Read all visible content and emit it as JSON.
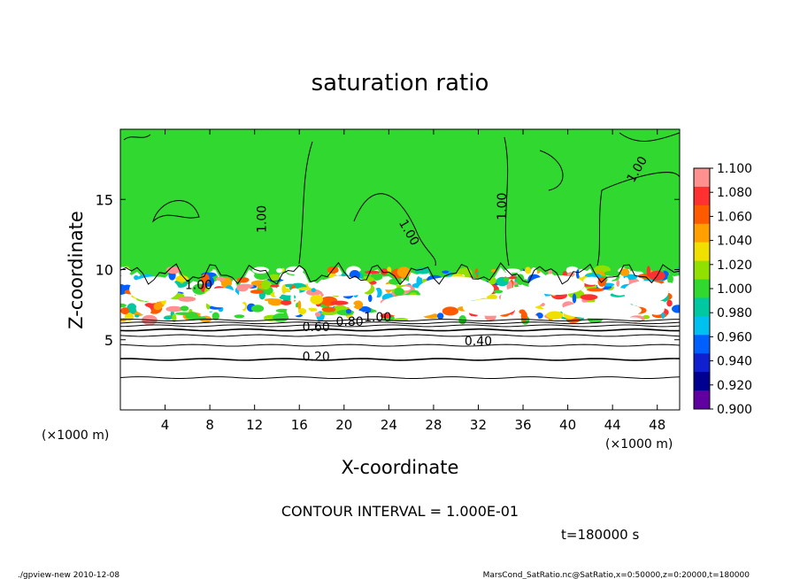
{
  "chart_data": {
    "type": "heatmap",
    "title": "saturation ratio",
    "xlabel": "X-coordinate",
    "ylabel": "Z-coordinate",
    "x_unit": "(×1000 m)",
    "y_unit": "(×1000 m)",
    "xlim": [
      0,
      50
    ],
    "ylim": [
      0,
      20
    ],
    "xticks": [
      4,
      8,
      12,
      16,
      20,
      24,
      28,
      32,
      36,
      40,
      44,
      48
    ],
    "yticks": [
      5,
      10,
      15
    ],
    "colorbar": {
      "labels": [
        "1.100",
        "1.080",
        "1.060",
        "1.040",
        "1.020",
        "1.000",
        "0.980",
        "0.960",
        "0.940",
        "0.920",
        "0.900"
      ],
      "colors": [
        "#ff9090",
        "#ff3030",
        "#ff5a00",
        "#ffa000",
        "#f0e000",
        "#90e000",
        "#30d830",
        "#00c8a0",
        "#00c0f0",
        "#0060ff",
        "#1020d0",
        "#000090",
        "#6000a0"
      ]
    },
    "contour_interval": "CONTOUR INTERVAL = 1.000E-01",
    "contour_labels": [
      {
        "text": "1.00",
        "x": 13.0,
        "z": 13.6,
        "angle": -90
      },
      {
        "text": "1.00",
        "x": 25.5,
        "z": 12.5,
        "angle": 60
      },
      {
        "text": "1.00",
        "x": 34.5,
        "z": 14.5,
        "angle": -90
      },
      {
        "text": "1.00",
        "x": 46.5,
        "z": 17.0,
        "angle": -60
      },
      {
        "text": "1.00",
        "x": 7.0,
        "z": 8.6,
        "angle": 0
      },
      {
        "text": "0.60",
        "x": 17.5,
        "z": 5.6,
        "angle": 0
      },
      {
        "text": "0.80",
        "x": 20.5,
        "z": 6.0,
        "angle": 0
      },
      {
        "text": "1.00",
        "x": 23.0,
        "z": 6.3,
        "angle": 0
      },
      {
        "text": "0.40",
        "x": 32.0,
        "z": 4.6,
        "angle": 0
      },
      {
        "text": "0.20",
        "x": 17.5,
        "z": 3.5,
        "angle": 0
      }
    ],
    "time_label": "t=180000 s",
    "footer_left": "./gpview-new   2010-12-08",
    "footer_right": "MarsCond_SatRatio.nc@SatRatio,x=0:50000,z=0:20000,t=180000"
  }
}
